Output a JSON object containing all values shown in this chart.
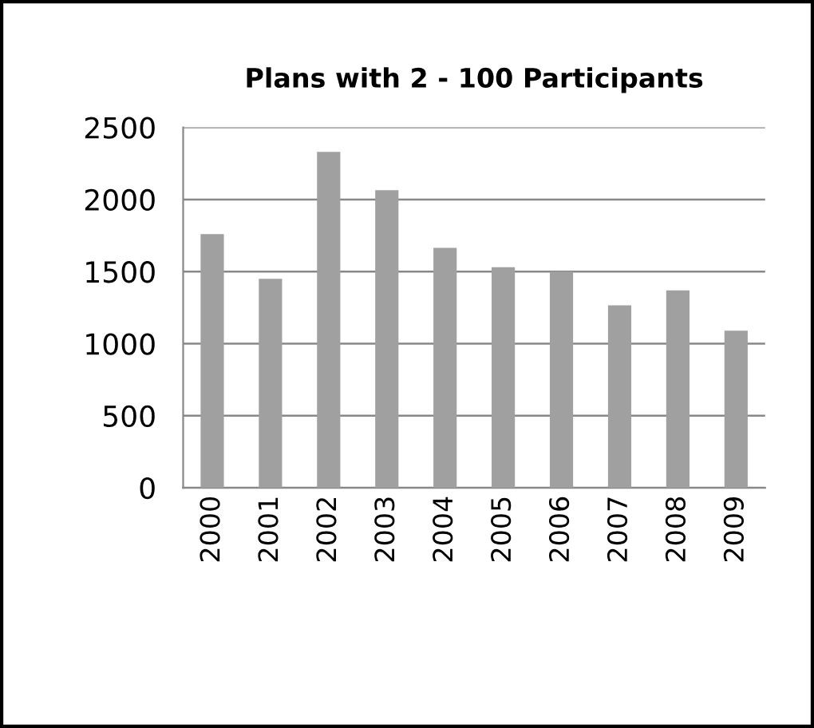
{
  "chart_data": {
    "type": "bar",
    "title": "Plans with 2 - 100 Participants",
    "categories": [
      "2000",
      "2001",
      "2002",
      "2003",
      "2004",
      "2005",
      "2006",
      "2007",
      "2008",
      "2009"
    ],
    "values": [
      1760,
      1450,
      2330,
      2065,
      1665,
      1530,
      1500,
      1265,
      1370,
      1090
    ],
    "color": "#a0a0a0",
    "ylim": [
      0,
      2500
    ],
    "yticks": [
      0,
      500,
      1000,
      1500,
      2000,
      2500
    ],
    "grid": "y"
  }
}
